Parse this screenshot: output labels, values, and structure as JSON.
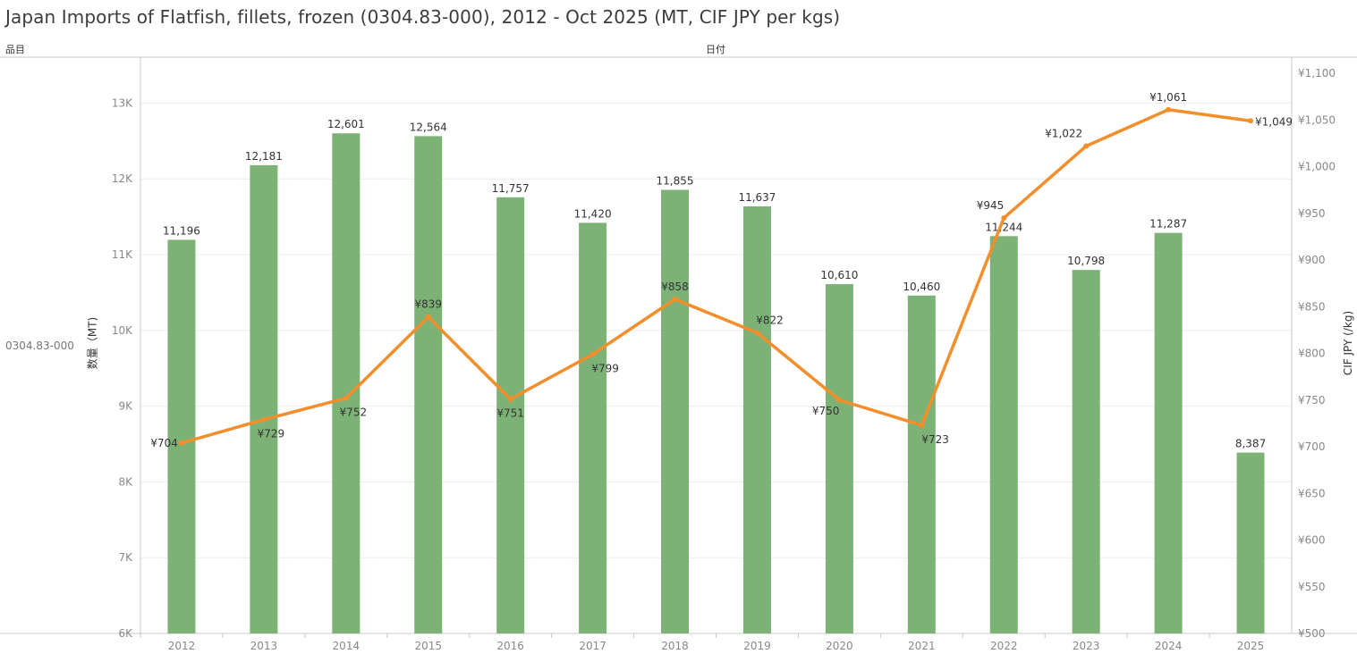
{
  "title": "Japan Imports of Flatfish, fillets, frozen (0304.83-000), 2012 - Oct 2025 (MT, CIF JPY per kgs)",
  "header": {
    "row_field": "品目",
    "column_field": "日付"
  },
  "row_label": "0304.83-000",
  "colors": {
    "bar": "#7db276",
    "line": "#f28e2b",
    "grid": "#ececec",
    "axis": "#c8c8c8"
  },
  "chart_data": {
    "type": "bar+line",
    "categories": [
      "2012",
      "2013",
      "2014",
      "2015",
      "2016",
      "2017",
      "2018",
      "2019",
      "2020",
      "2021",
      "2022",
      "2023",
      "2024",
      "2025"
    ],
    "series": [
      {
        "chart": "bar",
        "axis": "left",
        "values": [
          11196,
          12181,
          12601,
          12564,
          11757,
          11420,
          11855,
          11637,
          10610,
          10460,
          11244,
          10798,
          11287,
          8387
        ],
        "labels": [
          "11,196",
          "12,181",
          "12,601",
          "12,564",
          "11,757",
          "11,420",
          "11,855",
          "11,637",
          "10,610",
          "10,460",
          "11,244",
          "10,798",
          "11,287",
          "8,387"
        ]
      },
      {
        "chart": "line",
        "axis": "right",
        "values": [
          704,
          729,
          752,
          839,
          751,
          799,
          858,
          822,
          750,
          723,
          945,
          1022,
          1061,
          1049
        ],
        "labels": [
          "¥704",
          "¥729",
          "¥752",
          "¥839",
          "¥751",
          "¥799",
          "¥858",
          "¥822",
          "¥750",
          "¥723",
          "¥945",
          "¥1,022",
          "¥1,061",
          "¥1,049"
        ]
      }
    ],
    "y_left": {
      "label": "数量（MT)",
      "range": [
        6000,
        13500
      ],
      "ticks": [
        6000,
        7000,
        8000,
        9000,
        10000,
        11000,
        12000,
        13000
      ],
      "tick_labels": [
        "6K",
        "7K",
        "8K",
        "9K",
        "10K",
        "11K",
        "12K",
        "13K"
      ]
    },
    "y_right": {
      "label": "CIF JPY (/kg)",
      "range": [
        500,
        1100
      ],
      "ticks": [
        500,
        550,
        600,
        650,
        700,
        750,
        800,
        850,
        900,
        950,
        1000,
        1050,
        1100
      ],
      "tick_labels": [
        "¥500",
        "¥550",
        "¥600",
        "¥650",
        "¥700",
        "¥750",
        "¥800",
        "¥850",
        "¥900",
        "¥950",
        "¥1,000",
        "¥1,050",
        "¥1,100"
      ]
    },
    "grid": true
  }
}
